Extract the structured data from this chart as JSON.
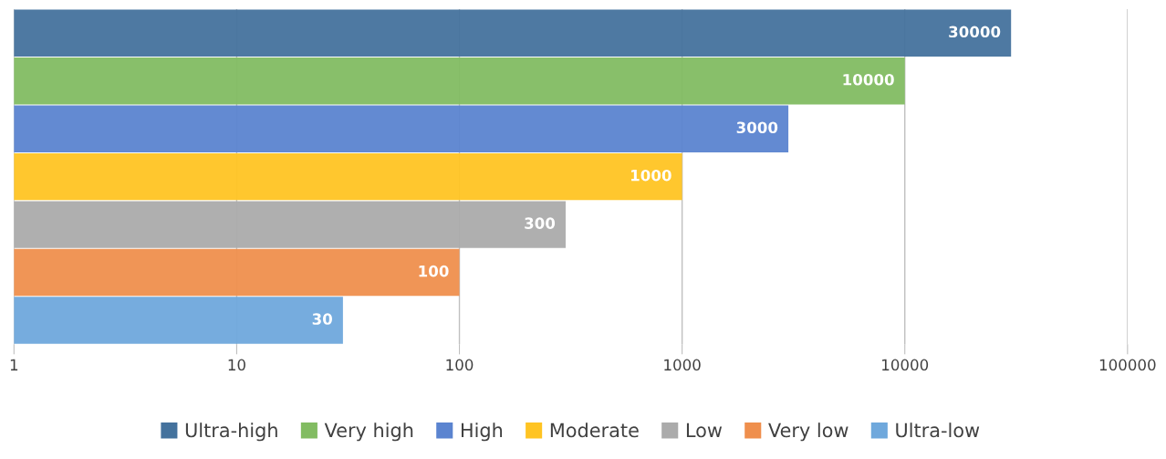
{
  "chart_data": {
    "type": "bar",
    "orientation": "horizontal",
    "categories": [
      null
    ],
    "log": "x",
    "xlim": [
      1,
      100000
    ],
    "xticks": [
      1,
      10,
      100,
      1000,
      10000,
      100000
    ],
    "grid": "x",
    "legend": "bottom",
    "data_labels": true,
    "tick_labels": "x",
    "series": [
      {
        "name": "Ultra-high",
        "color": "#44729d",
        "values": [
          30000
        ]
      },
      {
        "name": "Very high",
        "color": "#82bc62",
        "values": [
          10000
        ]
      },
      {
        "name": "High",
        "color": "#5b84d0",
        "values": [
          3000
        ]
      },
      {
        "name": "Moderate",
        "color": "#ffc423",
        "values": [
          1000
        ]
      },
      {
        "name": "Low",
        "color": "#ababab",
        "values": [
          300
        ]
      },
      {
        "name": "Very low",
        "color": "#ef8f4d",
        "values": [
          100
        ]
      },
      {
        "name": "Ultra-low",
        "color": "#6fa8dc",
        "values": [
          30
        ]
      }
    ]
  }
}
